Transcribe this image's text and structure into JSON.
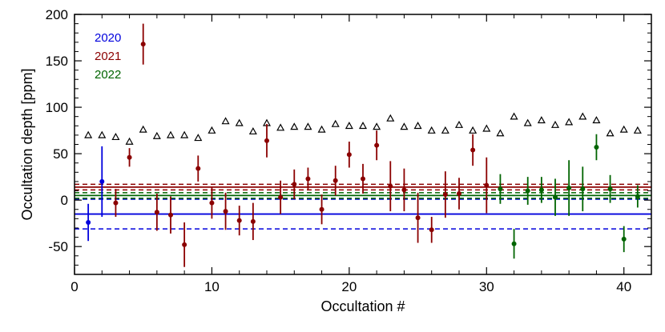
{
  "chart_data": {
    "type": "scatter",
    "xlabel": "Occultation #",
    "ylabel": "Occultation depth [ppm]",
    "xlim": [
      0,
      42
    ],
    "ylim": [
      -80,
      200
    ],
    "x_ticks": [
      0,
      10,
      20,
      30,
      40
    ],
    "y_ticks": [
      -50,
      0,
      50,
      100,
      150,
      200
    ],
    "grid": false,
    "legend_position": "top-left",
    "series": [
      {
        "name": "2020",
        "color": "#0000dd",
        "points": [
          {
            "x": 1,
            "y": -24,
            "err": 20
          },
          {
            "x": 2,
            "y": 20,
            "err": 38
          }
        ],
        "mean": -15,
        "mean_err": 16
      },
      {
        "name": "2021",
        "color": "#8b0000",
        "points": [
          {
            "x": 3,
            "y": -3,
            "err": 15
          },
          {
            "x": 4,
            "y": 46,
            "err": 10
          },
          {
            "x": 5,
            "y": 168,
            "err": 22
          },
          {
            "x": 6,
            "y": -13,
            "err": 20
          },
          {
            "x": 7,
            "y": -16,
            "err": 20
          },
          {
            "x": 8,
            "y": -48,
            "err": 24
          },
          {
            "x": 9,
            "y": 34,
            "err": 14
          },
          {
            "x": 10,
            "y": -3,
            "err": 17
          },
          {
            "x": 11,
            "y": -12,
            "err": 20
          },
          {
            "x": 12,
            "y": -22,
            "err": 16
          },
          {
            "x": 13,
            "y": -23,
            "err": 20
          },
          {
            "x": 14,
            "y": 64,
            "err": 18
          },
          {
            "x": 15,
            "y": 3,
            "err": 18
          },
          {
            "x": 16,
            "y": 17,
            "err": 16
          },
          {
            "x": 17,
            "y": 23,
            "err": 12
          },
          {
            "x": 18,
            "y": -10,
            "err": 16
          },
          {
            "x": 19,
            "y": 21,
            "err": 16
          },
          {
            "x": 20,
            "y": 49,
            "err": 14
          },
          {
            "x": 21,
            "y": 23,
            "err": 16
          },
          {
            "x": 22,
            "y": 59,
            "err": 16
          },
          {
            "x": 23,
            "y": 15,
            "err": 27
          },
          {
            "x": 24,
            "y": 11,
            "err": 23
          },
          {
            "x": 25,
            "y": -19,
            "err": 27
          },
          {
            "x": 26,
            "y": -32,
            "err": 14
          },
          {
            "x": 27,
            "y": 6,
            "err": 25
          },
          {
            "x": 28,
            "y": 7,
            "err": 17
          },
          {
            "x": 29,
            "y": 54,
            "err": 17
          },
          {
            "x": 30,
            "y": 16,
            "err": 30
          }
        ],
        "mean": 14,
        "mean_err": 3
      },
      {
        "name": "2022",
        "color": "#006400",
        "points": [
          {
            "x": 31,
            "y": 12,
            "err": 16
          },
          {
            "x": 32,
            "y": -47,
            "err": 16
          },
          {
            "x": 33,
            "y": 10,
            "err": 15
          },
          {
            "x": 34,
            "y": 11,
            "err": 14
          },
          {
            "x": 35,
            "y": 3,
            "err": 20
          },
          {
            "x": 36,
            "y": 13,
            "err": 30
          },
          {
            "x": 37,
            "y": 12,
            "err": 24
          },
          {
            "x": 38,
            "y": 57,
            "err": 14
          },
          {
            "x": 39,
            "y": 12,
            "err": 15
          },
          {
            "x": 40,
            "y": -42,
            "err": 14
          },
          {
            "x": 41,
            "y": 4,
            "err": 12
          }
        ],
        "mean": 5,
        "mean_err": 3
      }
    ],
    "triangles": {
      "color": "#000000",
      "points": [
        {
          "x": 1,
          "y": 70
        },
        {
          "x": 2,
          "y": 70
        },
        {
          "x": 3,
          "y": 68
        },
        {
          "x": 4,
          "y": 63
        },
        {
          "x": 5,
          "y": 76
        },
        {
          "x": 6,
          "y": 69
        },
        {
          "x": 7,
          "y": 70
        },
        {
          "x": 8,
          "y": 70
        },
        {
          "x": 9,
          "y": 67
        },
        {
          "x": 10,
          "y": 75
        },
        {
          "x": 11,
          "y": 85
        },
        {
          "x": 12,
          "y": 83
        },
        {
          "x": 13,
          "y": 74
        },
        {
          "x": 14,
          "y": 83
        },
        {
          "x": 15,
          "y": 78
        },
        {
          "x": 16,
          "y": 79
        },
        {
          "x": 17,
          "y": 79
        },
        {
          "x": 18,
          "y": 76
        },
        {
          "x": 19,
          "y": 82
        },
        {
          "x": 20,
          "y": 80
        },
        {
          "x": 21,
          "y": 80
        },
        {
          "x": 22,
          "y": 79
        },
        {
          "x": 23,
          "y": 88
        },
        {
          "x": 24,
          "y": 79
        },
        {
          "x": 25,
          "y": 80
        },
        {
          "x": 26,
          "y": 75
        },
        {
          "x": 27,
          "y": 75
        },
        {
          "x": 28,
          "y": 81
        },
        {
          "x": 29,
          "y": 75
        },
        {
          "x": 30,
          "y": 77
        },
        {
          "x": 31,
          "y": 72
        },
        {
          "x": 32,
          "y": 90
        },
        {
          "x": 33,
          "y": 83
        },
        {
          "x": 34,
          "y": 86
        },
        {
          "x": 35,
          "y": 81
        },
        {
          "x": 36,
          "y": 84
        },
        {
          "x": 37,
          "y": 90
        },
        {
          "x": 38,
          "y": 86
        },
        {
          "x": 39,
          "y": 72
        },
        {
          "x": 40,
          "y": 76
        },
        {
          "x": 41,
          "y": 75
        }
      ]
    }
  }
}
